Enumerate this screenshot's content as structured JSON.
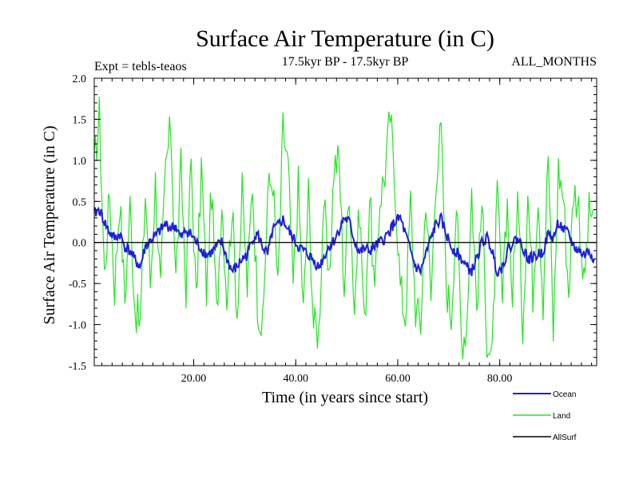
{
  "chart_data": {
    "type": "line",
    "title": "Surface Air Temperature (in C)",
    "subtitle": "17.5kyr BP - 17.5kyr BP",
    "left_note": "Expt = tebls-teaos",
    "right_note": "ALL_MONTHS",
    "xlabel": "Time (in years since start)",
    "ylabel": "Surface Air Temperature (in C)",
    "xlim": [
      0.5,
      99
    ],
    "ylim": [
      -1.5,
      2.0
    ],
    "x_ticks": [
      20,
      40,
      60,
      80
    ],
    "x_tick_labels": [
      "20.00",
      "40.00",
      "60.00",
      "80.00"
    ],
    "y_ticks": [
      -1.5,
      -1.0,
      -0.5,
      0.0,
      0.5,
      1.0,
      1.5,
      2.0
    ],
    "y_tick_labels": [
      "-1.5",
      "-1.0",
      "-0.5",
      "0.0",
      "0.5",
      "1.0",
      "1.5",
      "2.0"
    ],
    "zero_line": true,
    "legend_position": "bottom-right, below plot",
    "colors": {
      "Ocean": "#1f1fdc",
      "Land": "#22e622",
      "AllSurf": "#000000"
    },
    "series": [
      {
        "name": "Ocean",
        "x": [
          0.5,
          1.5,
          2.5,
          3.5,
          4.5,
          5.5,
          6.5,
          7.5,
          8.5,
          9.5,
          10.5,
          11.5,
          12.5,
          13.5,
          14.5,
          15.5,
          16.5,
          17.5,
          18.5,
          19.5,
          20.5,
          21.5,
          22.5,
          23.5,
          24.5,
          25.5,
          26.5,
          27.5,
          28.5,
          29.5,
          30.5,
          31.5,
          32.5,
          33.5,
          34.5,
          35.5,
          36.5,
          37.5,
          38.5,
          39.5,
          40.5,
          41.5,
          42.5,
          43.5,
          44.5,
          45.5,
          46.5,
          47.5,
          48.5,
          49.5,
          50.5,
          51.5,
          52.5,
          53.5,
          54.5,
          55.5,
          56.5,
          57.5,
          58.5,
          59.5,
          60.5,
          61.5,
          62.5,
          63.5,
          64.5,
          65.5,
          66.5,
          67.5,
          68.5,
          69.5,
          70.5,
          71.5,
          72.5,
          73.5,
          74.5,
          75.5,
          76.5,
          77.5,
          78.5,
          79.5,
          80.5,
          81.5,
          82.5,
          83.5,
          84.5,
          85.5,
          86.5,
          87.5,
          88.5,
          89.5,
          90.5,
          91.5,
          92.5,
          93.5,
          94.5,
          95.5,
          96.5,
          97.5,
          98.5
        ],
        "values": [
          0.35,
          0.4,
          0.25,
          0.12,
          0.05,
          0.1,
          -0.05,
          -0.1,
          -0.22,
          -0.3,
          -0.05,
          0.02,
          0.08,
          0.15,
          0.22,
          0.18,
          0.2,
          0.05,
          0.15,
          0.1,
          0.0,
          -0.08,
          -0.15,
          -0.12,
          -0.05,
          0.0,
          -0.2,
          -0.35,
          -0.3,
          -0.2,
          -0.15,
          0.05,
          0.1,
          -0.05,
          -0.15,
          0.15,
          0.2,
          0.28,
          0.15,
          0.05,
          -0.05,
          -0.1,
          -0.15,
          -0.22,
          -0.3,
          -0.18,
          -0.05,
          0.02,
          0.15,
          0.3,
          0.25,
          0.02,
          -0.12,
          -0.08,
          -0.1,
          -0.05,
          0.0,
          0.05,
          0.15,
          0.25,
          0.3,
          0.1,
          -0.1,
          -0.3,
          -0.35,
          -0.15,
          0.05,
          0.22,
          0.28,
          0.1,
          -0.05,
          -0.12,
          -0.2,
          -0.3,
          -0.35,
          -0.2,
          0.0,
          0.05,
          -0.1,
          -0.35,
          -0.3,
          -0.1,
          0.0,
          0.05,
          -0.05,
          -0.2,
          -0.18,
          -0.15,
          -0.1,
          0.1,
          0.05,
          0.25,
          0.15,
          0.1,
          -0.05,
          -0.1,
          -0.15,
          -0.1,
          -0.2
        ]
      },
      {
        "name": "Land",
        "x": [
          0.5,
          1.5,
          2.5,
          3.5,
          4.5,
          5.5,
          6.5,
          7.5,
          8.5,
          9.5,
          10.5,
          11.5,
          12.5,
          13.5,
          14.5,
          15.5,
          16.5,
          17.5,
          18.5,
          19.5,
          20.5,
          21.5,
          22.5,
          23.5,
          24.5,
          25.5,
          26.5,
          27.5,
          28.5,
          29.5,
          30.5,
          31.5,
          32.5,
          33.5,
          34.5,
          35.5,
          36.5,
          37.5,
          38.5,
          39.5,
          40.5,
          41.5,
          42.5,
          43.5,
          44.5,
          45.5,
          46.5,
          47.5,
          48.5,
          49.5,
          50.5,
          51.5,
          52.5,
          53.5,
          54.5,
          55.5,
          56.5,
          57.5,
          58.5,
          59.5,
          60.5,
          61.5,
          62.5,
          63.5,
          64.5,
          65.5,
          66.5,
          67.5,
          68.5,
          69.5,
          70.5,
          71.5,
          72.5,
          73.5,
          74.5,
          75.5,
          76.5,
          77.5,
          78.5,
          79.5,
          80.5,
          81.5,
          82.5,
          83.5,
          84.5,
          85.5,
          86.5,
          87.5,
          88.5,
          89.5,
          90.5,
          91.5,
          92.5,
          93.5,
          94.5,
          95.5,
          96.5,
          97.5,
          98.5
        ],
        "values": [
          0.9,
          1.55,
          -0.4,
          0.6,
          -0.55,
          0.55,
          -0.7,
          0.45,
          -0.8,
          -1.0,
          0.6,
          -0.5,
          0.75,
          -0.6,
          0.9,
          1.4,
          -0.45,
          0.9,
          -0.55,
          1.0,
          -0.75,
          0.95,
          -0.6,
          0.65,
          -0.9,
          0.55,
          -0.65,
          0.45,
          -0.85,
          0.6,
          -0.55,
          0.75,
          -0.7,
          -1.1,
          0.6,
          0.8,
          -0.6,
          1.4,
          0.9,
          -0.55,
          0.7,
          -0.85,
          0.6,
          -1.0,
          -1.1,
          0.55,
          -0.6,
          0.95,
          1.0,
          -0.55,
          0.7,
          -0.8,
          0.45,
          -1.05,
          0.6,
          -0.7,
          0.55,
          0.85,
          1.55,
          0.7,
          -0.55,
          -0.9,
          0.5,
          -0.8,
          -1.0,
          0.6,
          -0.7,
          0.85,
          1.35,
          -0.5,
          -0.9,
          0.5,
          -1.2,
          -1.0,
          0.65,
          -0.8,
          0.5,
          -1.15,
          -1.45,
          0.6,
          -0.75,
          0.5,
          -0.65,
          0.55,
          -1.0,
          0.6,
          -0.6,
          0.65,
          -0.7,
          1.1,
          -1.1,
          0.9,
          0.55,
          -0.6,
          0.65,
          0.45,
          -0.55,
          0.35,
          0.4
        ]
      },
      {
        "name": "AllSurf",
        "x": [
          0.5,
          99
        ],
        "values": [
          0.0,
          0.0
        ]
      }
    ]
  }
}
